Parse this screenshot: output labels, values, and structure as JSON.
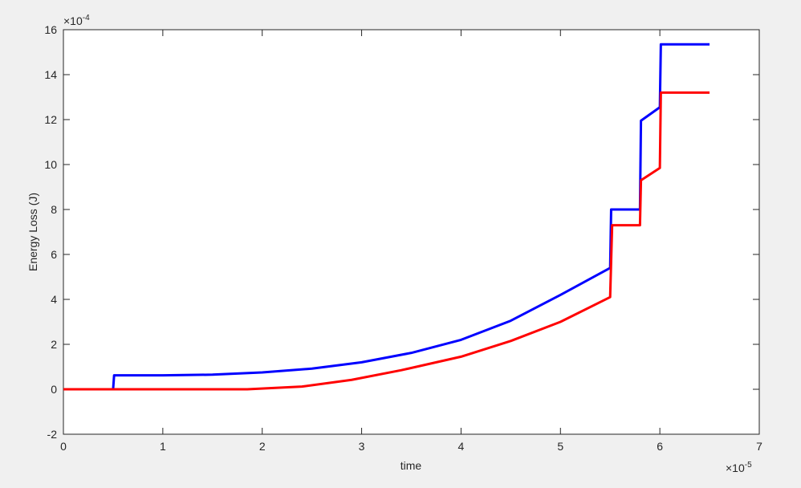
{
  "chart_data": {
    "type": "line",
    "x_label": "time",
    "y_label": "Energy Loss (J)",
    "x_multiplier": {
      "base": "×10",
      "exponent": "-5"
    },
    "y_multiplier": {
      "base": "×10",
      "exponent": "-4"
    },
    "xlim": [
      0,
      7
    ],
    "xticks": [
      0,
      1,
      2,
      3,
      4,
      5,
      6,
      7
    ],
    "ylim": [
      -2,
      16
    ],
    "yticks": [
      -2,
      0,
      2,
      4,
      6,
      8,
      10,
      12,
      14,
      16
    ],
    "grid": false,
    "series": [
      {
        "color": "#0000ff",
        "x": [
          0,
          0.5,
          0.51,
          1,
          1.5,
          2,
          2.5,
          3,
          3.5,
          4,
          4.5,
          5,
          5.5,
          5.51,
          5.8,
          5.81,
          6.0,
          6.01,
          6.5
        ],
        "values": [
          0,
          0,
          0.62,
          0.62,
          0.65,
          0.75,
          0.92,
          1.2,
          1.62,
          2.2,
          3.05,
          4.2,
          5.4,
          8.0,
          8.0,
          11.95,
          12.55,
          15.35,
          15.35
        ]
      },
      {
        "color": "#ff0000",
        "x": [
          0,
          1.85,
          2.4,
          2.9,
          3.4,
          4.0,
          4.5,
          5.0,
          5.5,
          5.52,
          5.8,
          5.81,
          6.0,
          6.01,
          6.5
        ],
        "values": [
          0,
          0,
          0.12,
          0.42,
          0.85,
          1.45,
          2.15,
          3.0,
          4.1,
          7.3,
          7.3,
          9.3,
          9.85,
          13.2,
          13.2
        ]
      }
    ]
  }
}
